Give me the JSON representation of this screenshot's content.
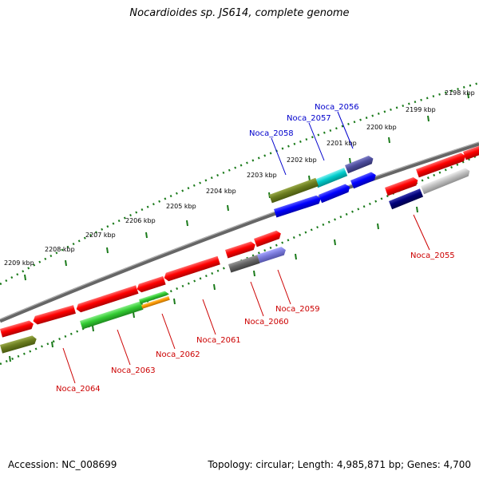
{
  "title": "Nocardioides sp. JS614, complete genome",
  "footer": {
    "accession": "Accession: NC_008699",
    "summary": "Topology: circular; Length: 4,985,871 bp; Genes: 4,700"
  },
  "colors": {
    "backbone": "#808080",
    "ticks": "#1a7a1a",
    "label_forward": "#0000cc",
    "label_reverse": "#cc0000"
  },
  "kbp_labels": [
    "2198 kbp",
    "2199 kbp",
    "2200 kbp",
    "2201 kbp",
    "2202 kbp",
    "2203 kbp",
    "2204 kbp",
    "2205 kbp",
    "2206 kbp",
    "2207 kbp",
    "2208 kbp",
    "2209 kbp"
  ],
  "genes": [
    {
      "label": "Noca_2055",
      "color": "#cc0000"
    },
    {
      "label": "Noca_2056",
      "color": "#0000cc"
    },
    {
      "label": "Noca_2057",
      "color": "#0000cc"
    },
    {
      "label": "Noca_2058",
      "color": "#0000cc"
    },
    {
      "label": "Noca_2059",
      "color": "#cc0000"
    },
    {
      "label": "Noca_2060",
      "color": "#cc0000"
    },
    {
      "label": "Noca_2061",
      "color": "#cc0000"
    },
    {
      "label": "Noca_2062",
      "color": "#cc0000"
    },
    {
      "label": "Noca_2063",
      "color": "#cc0000"
    },
    {
      "label": "Noca_2064",
      "color": "#cc0000"
    }
  ]
}
